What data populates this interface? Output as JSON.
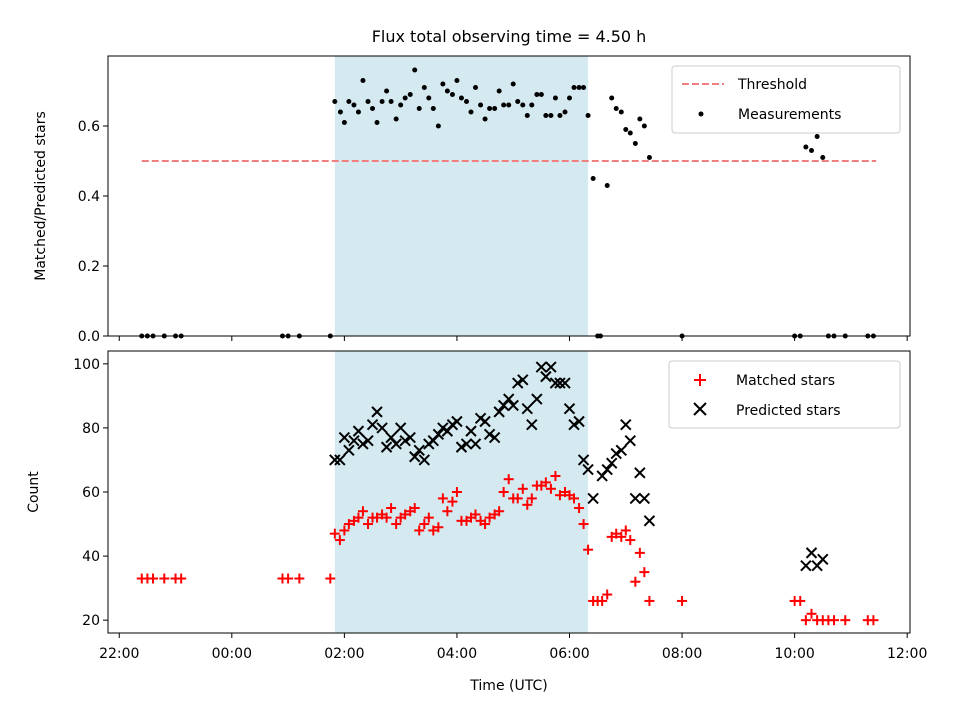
{
  "chart_data": [
    {
      "type": "scatter",
      "title": "Flux total observing time = 4.50 h",
      "xlabel": "",
      "ylabel": "Matched/Predicted stars",
      "x_unit": "hours relative to 00:00 UTC",
      "xlim": [
        -2.2,
        12.05
      ],
      "ylim": [
        0,
        0.8
      ],
      "yticks": [
        0.0,
        0.2,
        0.4,
        0.6
      ],
      "ytick_labels": [
        "0.0",
        "0.2",
        "0.4",
        "0.6"
      ],
      "shaded_region": {
        "x": [
          1.83,
          6.33
        ],
        "color": "#d4eaf0"
      },
      "threshold": {
        "name": "Threshold",
        "y": 0.5,
        "x": [
          -1.6,
          11.45
        ],
        "color": "#f08080"
      },
      "legend": {
        "position": "top-right",
        "entries": [
          "Threshold",
          "Measurements"
        ]
      },
      "series": [
        {
          "name": "Measurements",
          "marker": "dot",
          "color": "#000000",
          "points": [
            [
              -1.6,
              0
            ],
            [
              -1.5,
              0
            ],
            [
              -1.4,
              0
            ],
            [
              -1.2,
              0
            ],
            [
              -1.0,
              0
            ],
            [
              -0.9,
              0
            ],
            [
              0.9,
              0
            ],
            [
              1.0,
              0
            ],
            [
              1.2,
              0
            ],
            [
              1.75,
              0
            ],
            [
              1.83,
              0.67
            ],
            [
              1.93,
              0.64
            ],
            [
              2.0,
              0.61
            ],
            [
              2.08,
              0.67
            ],
            [
              2.17,
              0.66
            ],
            [
              2.25,
              0.64
            ],
            [
              2.33,
              0.73
            ],
            [
              2.42,
              0.67
            ],
            [
              2.5,
              0.65
            ],
            [
              2.58,
              0.61
            ],
            [
              2.67,
              0.67
            ],
            [
              2.75,
              0.7
            ],
            [
              2.83,
              0.67
            ],
            [
              2.92,
              0.62
            ],
            [
              3.0,
              0.66
            ],
            [
              3.08,
              0.68
            ],
            [
              3.17,
              0.69
            ],
            [
              3.25,
              0.76
            ],
            [
              3.33,
              0.65
            ],
            [
              3.42,
              0.71
            ],
            [
              3.5,
              0.68
            ],
            [
              3.58,
              0.65
            ],
            [
              3.67,
              0.6
            ],
            [
              3.75,
              0.72
            ],
            [
              3.83,
              0.7
            ],
            [
              3.92,
              0.69
            ],
            [
              4.0,
              0.73
            ],
            [
              4.08,
              0.68
            ],
            [
              4.17,
              0.67
            ],
            [
              4.25,
              0.64
            ],
            [
              4.33,
              0.71
            ],
            [
              4.42,
              0.66
            ],
            [
              4.5,
              0.62
            ],
            [
              4.58,
              0.65
            ],
            [
              4.67,
              0.65
            ],
            [
              4.75,
              0.7
            ],
            [
              4.83,
              0.66
            ],
            [
              4.92,
              0.66
            ],
            [
              5.0,
              0.72
            ],
            [
              5.08,
              0.67
            ],
            [
              5.17,
              0.66
            ],
            [
              5.25,
              0.63
            ],
            [
              5.33,
              0.66
            ],
            [
              5.42,
              0.69
            ],
            [
              5.5,
              0.69
            ],
            [
              5.58,
              0.63
            ],
            [
              5.67,
              0.63
            ],
            [
              5.75,
              0.68
            ],
            [
              5.83,
              0.63
            ],
            [
              5.92,
              0.64
            ],
            [
              6.0,
              0.68
            ],
            [
              6.08,
              0.71
            ],
            [
              6.17,
              0.71
            ],
            [
              6.25,
              0.71
            ],
            [
              6.33,
              0.63
            ],
            [
              6.42,
              0.45
            ],
            [
              6.5,
              0
            ],
            [
              6.55,
              0
            ],
            [
              6.67,
              0.43
            ],
            [
              6.75,
              0.68
            ],
            [
              6.83,
              0.65
            ],
            [
              6.92,
              0.64
            ],
            [
              7.0,
              0.59
            ],
            [
              7.08,
              0.58
            ],
            [
              7.17,
              0.55
            ],
            [
              7.25,
              0.62
            ],
            [
              7.33,
              0.6
            ],
            [
              7.42,
              0.51
            ],
            [
              8.0,
              0
            ],
            [
              10.0,
              0
            ],
            [
              10.1,
              0
            ],
            [
              10.2,
              0.54
            ],
            [
              10.3,
              0.53
            ],
            [
              10.4,
              0.57
            ],
            [
              10.5,
              0.51
            ],
            [
              10.6,
              0
            ],
            [
              10.7,
              0
            ],
            [
              10.9,
              0
            ],
            [
              11.3,
              0
            ],
            [
              11.4,
              0
            ]
          ]
        }
      ]
    },
    {
      "type": "scatter",
      "title": "",
      "xlabel": "Time (UTC)",
      "ylabel": "Count",
      "x_unit": "hours relative to 00:00 UTC",
      "xlim": [
        -2.2,
        12.05
      ],
      "ylim": [
        16,
        104
      ],
      "xticks": [
        -2,
        0,
        2,
        4,
        6,
        8,
        10,
        12
      ],
      "xtick_labels": [
        "22:00",
        "00:00",
        "02:00",
        "04:00",
        "06:00",
        "08:00",
        "10:00",
        "12:00"
      ],
      "yticks": [
        20,
        40,
        60,
        80,
        100
      ],
      "ytick_labels": [
        "20",
        "40",
        "60",
        "80",
        "100"
      ],
      "shaded_region": {
        "x": [
          1.83,
          6.33
        ],
        "color": "#d4eaf0"
      },
      "legend": {
        "position": "top-right",
        "entries": [
          "Matched stars",
          "Predicted stars"
        ]
      },
      "series": [
        {
          "name": "Matched stars",
          "marker": "plus",
          "color": "#ff0000",
          "points": [
            [
              -1.6,
              33
            ],
            [
              -1.5,
              33
            ],
            [
              -1.4,
              33
            ],
            [
              -1.2,
              33
            ],
            [
              -1.0,
              33
            ],
            [
              -0.9,
              33
            ],
            [
              0.9,
              33
            ],
            [
              1.0,
              33
            ],
            [
              1.2,
              33
            ],
            [
              1.75,
              33
            ],
            [
              1.83,
              47
            ],
            [
              1.92,
              45
            ],
            [
              2.0,
              48
            ],
            [
              2.08,
              50
            ],
            [
              2.17,
              51
            ],
            [
              2.25,
              52
            ],
            [
              2.33,
              54
            ],
            [
              2.42,
              50
            ],
            [
              2.5,
              52
            ],
            [
              2.58,
              52
            ],
            [
              2.67,
              53
            ],
            [
              2.75,
              52
            ],
            [
              2.83,
              55
            ],
            [
              2.92,
              50
            ],
            [
              3.0,
              52
            ],
            [
              3.08,
              53
            ],
            [
              3.17,
              54
            ],
            [
              3.25,
              55
            ],
            [
              3.33,
              48
            ],
            [
              3.42,
              50
            ],
            [
              3.5,
              52
            ],
            [
              3.58,
              48
            ],
            [
              3.67,
              49
            ],
            [
              3.75,
              58
            ],
            [
              3.83,
              54
            ],
            [
              3.92,
              57
            ],
            [
              4.0,
              60
            ],
            [
              4.08,
              51
            ],
            [
              4.17,
              51
            ],
            [
              4.25,
              52
            ],
            [
              4.33,
              53
            ],
            [
              4.42,
              51
            ],
            [
              4.5,
              50
            ],
            [
              4.58,
              52
            ],
            [
              4.67,
              53
            ],
            [
              4.75,
              54
            ],
            [
              4.83,
              60
            ],
            [
              4.92,
              64
            ],
            [
              5.0,
              58
            ],
            [
              5.08,
              58
            ],
            [
              5.17,
              61
            ],
            [
              5.25,
              56
            ],
            [
              5.33,
              58
            ],
            [
              5.42,
              62
            ],
            [
              5.5,
              62
            ],
            [
              5.58,
              63
            ],
            [
              5.67,
              61
            ],
            [
              5.75,
              65
            ],
            [
              5.83,
              59
            ],
            [
              5.92,
              60
            ],
            [
              6.0,
              59
            ],
            [
              6.08,
              58
            ],
            [
              6.17,
              55
            ],
            [
              6.25,
              50
            ],
            [
              6.33,
              42
            ],
            [
              6.42,
              26
            ],
            [
              6.5,
              26
            ],
            [
              6.58,
              26
            ],
            [
              6.67,
              28
            ],
            [
              6.75,
              46
            ],
            [
              6.83,
              47
            ],
            [
              6.92,
              46
            ],
            [
              7.0,
              48
            ],
            [
              7.08,
              45
            ],
            [
              7.17,
              32
            ],
            [
              7.25,
              41
            ],
            [
              7.33,
              35
            ],
            [
              7.42,
              26
            ],
            [
              8.0,
              26
            ],
            [
              10.0,
              26
            ],
            [
              10.1,
              26
            ],
            [
              10.2,
              20
            ],
            [
              10.3,
              22
            ],
            [
              10.4,
              20
            ],
            [
              10.5,
              20
            ],
            [
              10.6,
              20
            ],
            [
              10.7,
              20
            ],
            [
              10.9,
              20
            ],
            [
              11.3,
              20
            ],
            [
              11.4,
              20
            ]
          ]
        },
        {
          "name": "Predicted stars",
          "marker": "x",
          "color": "#000000",
          "points": [
            [
              1.83,
              70
            ],
            [
              1.92,
              70
            ],
            [
              2.0,
              77
            ],
            [
              2.08,
              73
            ],
            [
              2.17,
              76
            ],
            [
              2.25,
              79
            ],
            [
              2.33,
              75
            ],
            [
              2.42,
              76
            ],
            [
              2.5,
              81
            ],
            [
              2.58,
              85
            ],
            [
              2.67,
              80
            ],
            [
              2.75,
              74
            ],
            [
              2.83,
              77
            ],
            [
              2.92,
              75
            ],
            [
              3.0,
              80
            ],
            [
              3.08,
              76
            ],
            [
              3.17,
              77
            ],
            [
              3.25,
              71
            ],
            [
              3.33,
              73
            ],
            [
              3.42,
              70
            ],
            [
              3.5,
              75
            ],
            [
              3.58,
              76
            ],
            [
              3.67,
              78
            ],
            [
              3.75,
              80
            ],
            [
              3.83,
              79
            ],
            [
              3.92,
              81
            ],
            [
              4.0,
              82
            ],
            [
              4.08,
              74
            ],
            [
              4.17,
              75
            ],
            [
              4.25,
              79
            ],
            [
              4.33,
              75
            ],
            [
              4.42,
              83
            ],
            [
              4.5,
              82
            ],
            [
              4.58,
              78
            ],
            [
              4.67,
              77
            ],
            [
              4.75,
              85
            ],
            [
              4.83,
              87
            ],
            [
              4.92,
              89
            ],
            [
              5.0,
              87
            ],
            [
              5.08,
              94
            ],
            [
              5.17,
              95
            ],
            [
              5.25,
              86
            ],
            [
              5.33,
              81
            ],
            [
              5.42,
              89
            ],
            [
              5.5,
              99
            ],
            [
              5.58,
              96
            ],
            [
              5.67,
              99
            ],
            [
              5.75,
              94
            ],
            [
              5.83,
              94
            ],
            [
              5.92,
              94
            ],
            [
              6.0,
              86
            ],
            [
              6.08,
              81
            ],
            [
              6.17,
              82
            ],
            [
              6.25,
              70
            ],
            [
              6.33,
              67
            ],
            [
              6.42,
              58
            ],
            [
              6.58,
              65
            ],
            [
              6.67,
              67
            ],
            [
              6.75,
              69
            ],
            [
              6.83,
              72
            ],
            [
              6.92,
              73
            ],
            [
              7.0,
              81
            ],
            [
              7.08,
              76
            ],
            [
              7.17,
              58
            ],
            [
              7.25,
              66
            ],
            [
              7.33,
              58
            ],
            [
              7.42,
              51
            ],
            [
              10.2,
              37
            ],
            [
              10.3,
              41
            ],
            [
              10.4,
              37
            ],
            [
              10.5,
              39
            ]
          ]
        }
      ]
    }
  ]
}
